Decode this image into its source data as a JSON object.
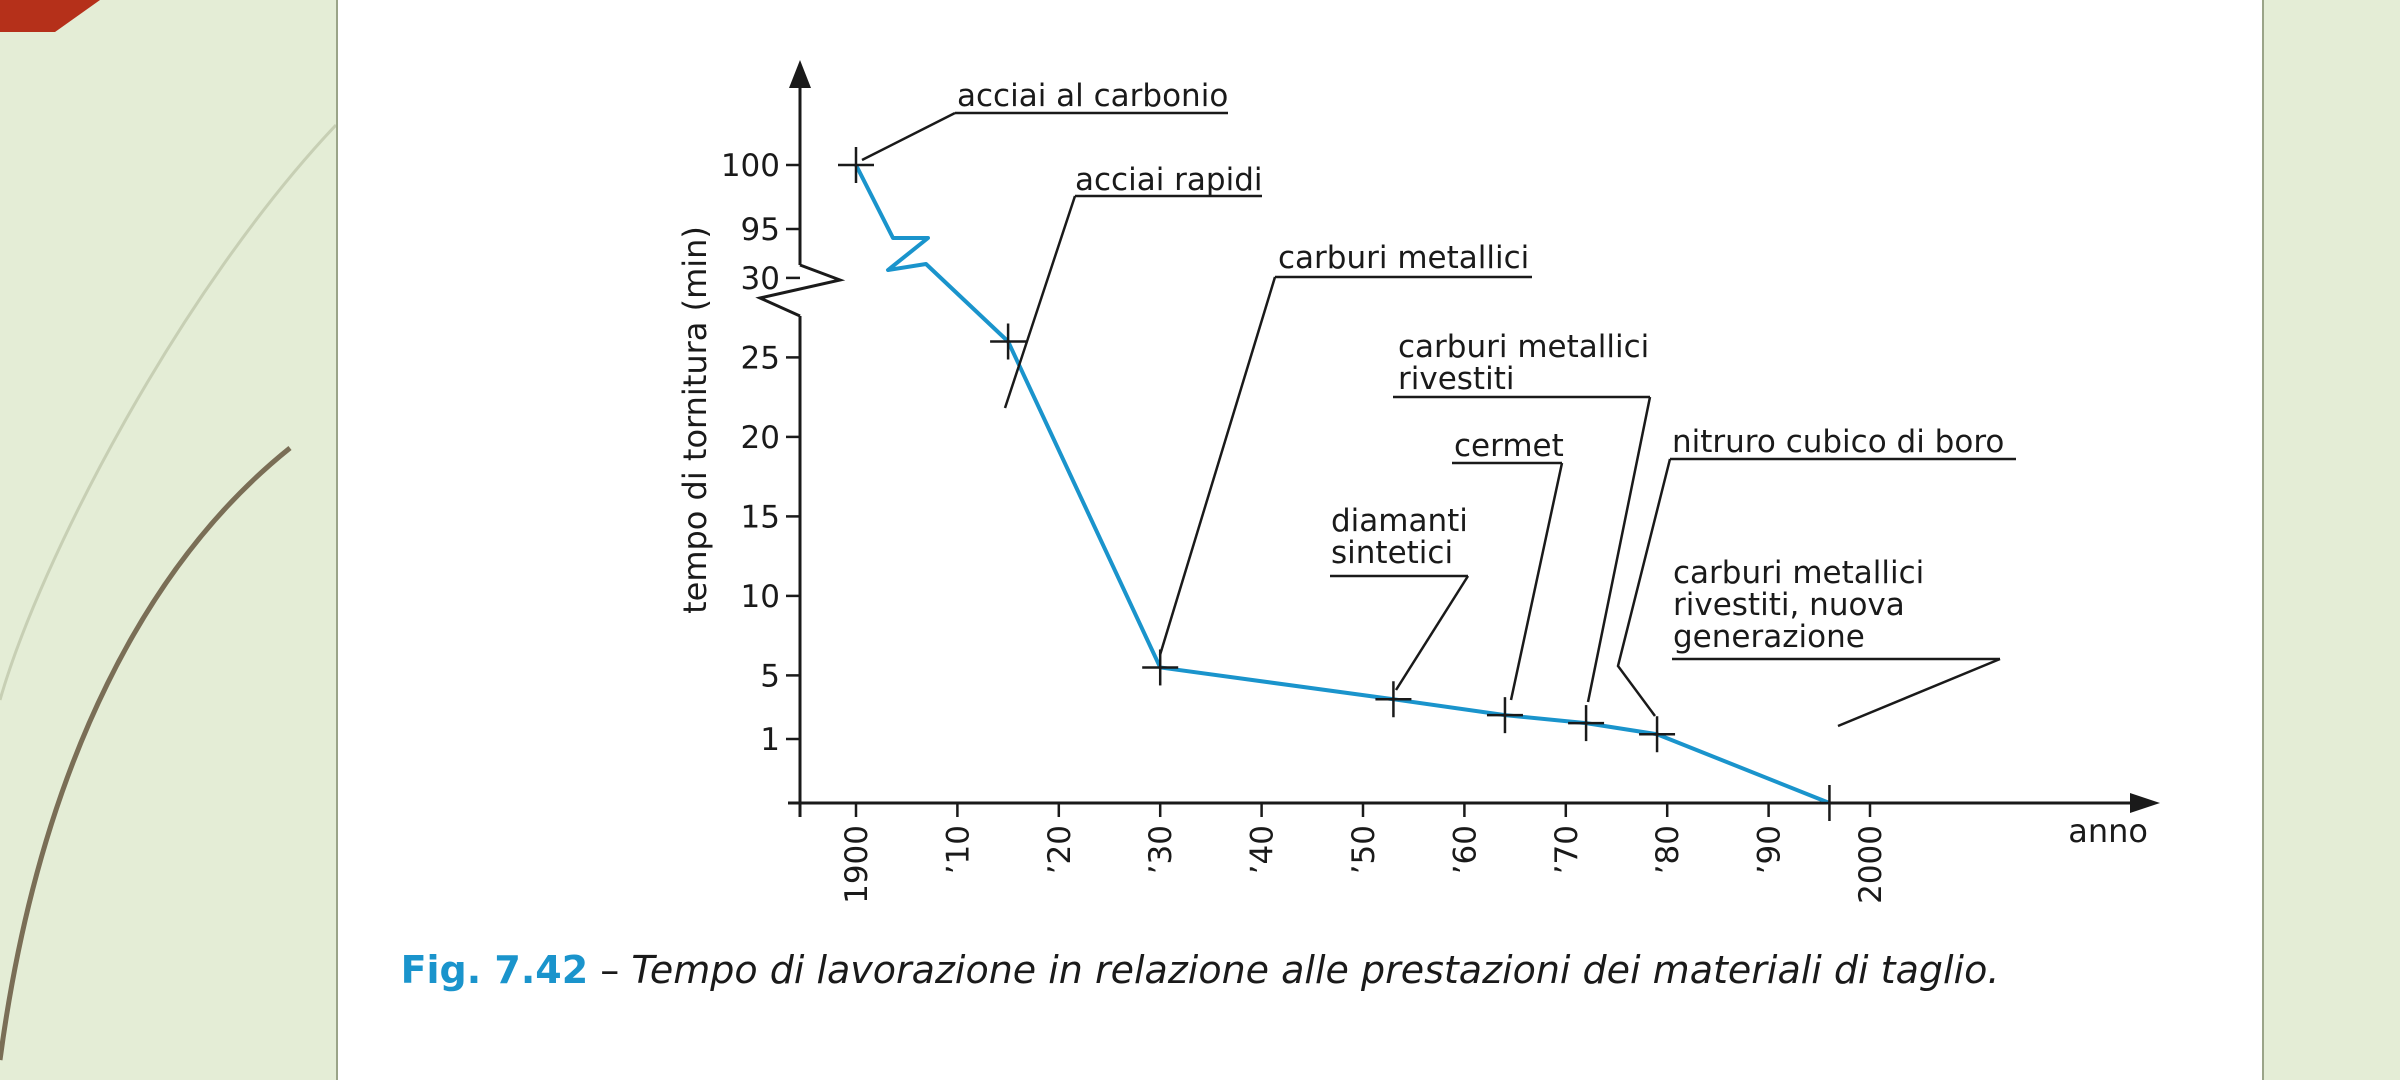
{
  "theme": {
    "accent": "#1a94cc",
    "background": "#e4edd6",
    "corner": "#b5301a"
  },
  "caption": {
    "figure": "Fig. 7.42",
    "dash": " – ",
    "text": "Tempo di lavorazione in relazione alle prestazioni dei materiali di taglio."
  },
  "chart_data": {
    "type": "line",
    "xlabel": "anno",
    "ylabel": "tempo di tornitura (min)",
    "x_ticks": [
      "1900",
      "’10",
      "’20",
      "’30",
      "’40",
      "’50",
      "’60",
      "’70",
      "’80",
      "’90",
      "2000"
    ],
    "y_ticks_upper": [
      "100",
      "95"
    ],
    "y_ticks_lower": [
      "30",
      "25",
      "20",
      "15",
      "10",
      "5",
      "1"
    ],
    "y_axis_break": true,
    "series": [
      {
        "color": "#1a94cc",
        "points": [
          {
            "year": 1900,
            "minutes": 100,
            "label": [
              "acciai al carbonio"
            ]
          },
          {
            "year": 1915,
            "minutes": 26,
            "label": [
              "acciai rapidi"
            ]
          },
          {
            "year": 1930,
            "minutes": 5.5,
            "label": [
              "carburi metallici"
            ]
          },
          {
            "year": 1953,
            "minutes": 3.5,
            "label": [
              "diamanti",
              "sintetici"
            ]
          },
          {
            "year": 1964,
            "minutes": 2.5,
            "label": [
              "cermet"
            ]
          },
          {
            "year": 1972,
            "minutes": 2,
            "label": [
              "carburi metallici",
              "rivestiti"
            ]
          },
          {
            "year": 1979,
            "minutes": 1.3,
            "label": [
              "nitruro cubico di boro"
            ]
          },
          {
            "year": 1996,
            "minutes": 0,
            "label": [
              "carburi metallici",
              "rivestiti, nuova",
              "generazione"
            ]
          }
        ]
      }
    ]
  }
}
